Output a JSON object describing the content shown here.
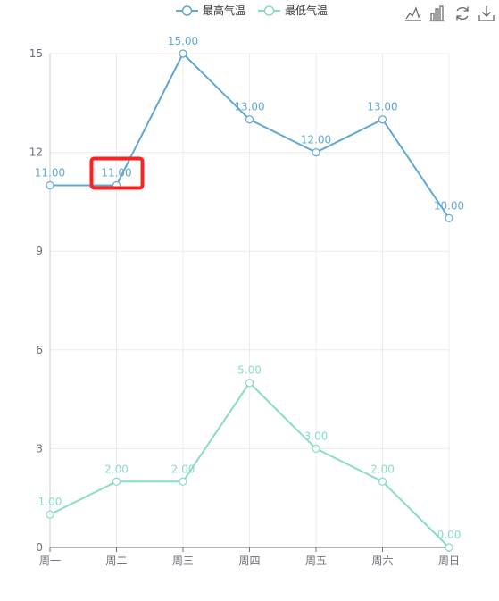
{
  "chart_data": {
    "type": "line",
    "categories": [
      "周一",
      "周二",
      "周三",
      "周四",
      "周五",
      "周六",
      "周日"
    ],
    "series": [
      {
        "name": "最高气温",
        "values": [
          11,
          11,
          15,
          13,
          12,
          13,
          10
        ],
        "labels": [
          "11.00",
          "11.00",
          "15.00",
          "13.00",
          "12.00",
          "13.00",
          "10.00"
        ],
        "color": "#5fa8d3"
      },
      {
        "name": "最低气温",
        "values": [
          1,
          2,
          2,
          5,
          3,
          2,
          0
        ],
        "labels": [
          "1.00",
          "2.00",
          "2.00",
          "5.00",
          "3.00",
          "2.00",
          "0.00"
        ],
        "color": "#88dcc8"
      }
    ],
    "yticks": [
      "0",
      "3",
      "6",
      "9",
      "12",
      "15"
    ],
    "ylim": [
      0,
      15
    ],
    "grid": true,
    "legend": "top-center",
    "highlight": {
      "series": 0,
      "index": 1,
      "color": "#ff2020"
    }
  },
  "toolbox": {
    "icons": [
      "line-chart-icon",
      "bar-chart-icon",
      "refresh-icon",
      "download-icon"
    ]
  }
}
